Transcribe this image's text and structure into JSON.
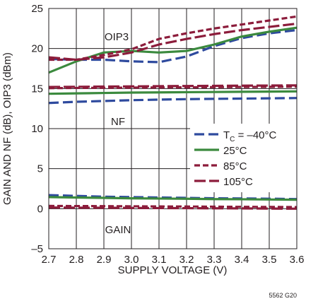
{
  "chart_data": {
    "type": "line",
    "xlabel": "SUPPLY VOLTAGE (V)",
    "ylabel": "GAIN AND NF (dB), OIP3 (dBm)",
    "xlim": [
      2.7,
      3.6
    ],
    "ylim": [
      -5,
      25
    ],
    "x_ticks": [
      "2.7",
      "2.8",
      "2.9",
      "3.0",
      "3.1",
      "3.2",
      "3.3",
      "3.4",
      "3.5",
      "3.6"
    ],
    "y_ticks": [
      "–5",
      "0",
      "5",
      "10",
      "15",
      "20",
      "25"
    ],
    "grid": true,
    "annotations": [
      "OIP3",
      "NF",
      "GAIN"
    ],
    "figure_code": "5562 G20",
    "legend": {
      "placement": "right",
      "entries": [
        {
          "label": "T",
          "subscript": "C",
          "suffix": " = –40°C",
          "color": "#2e4a9e",
          "dash": "dashed"
        },
        {
          "label": "25°C",
          "color": "#3b8a3e",
          "dash": "solid"
        },
        {
          "label": "85°C",
          "color": "#8c1c3b",
          "dash": "short-dash"
        },
        {
          "label": "105°C",
          "color": "#8c1c3b",
          "dash": "long-dash"
        }
      ]
    },
    "x": [
      2.7,
      2.8,
      2.9,
      3.0,
      3.1,
      3.2,
      3.3,
      3.4,
      3.5,
      3.6
    ],
    "series": [
      {
        "name": "OIP3 T_C = –40°C",
        "color": "#2e4a9e",
        "dash": "dashed",
        "values": [
          18.7,
          18.6,
          18.6,
          18.4,
          18.3,
          19.0,
          20.3,
          21.3,
          21.9,
          22.3
        ]
      },
      {
        "name": "OIP3 25°C",
        "color": "#3b8a3e",
        "dash": "solid",
        "values": [
          17.0,
          18.4,
          19.5,
          19.7,
          19.5,
          19.7,
          20.5,
          21.5,
          22.1,
          22.6
        ]
      },
      {
        "name": "OIP3 85°C",
        "color": "#8c1c3b",
        "dash": "short-dash",
        "values": [
          18.6,
          18.6,
          19.2,
          19.9,
          21.2,
          21.9,
          22.5,
          23.0,
          23.5,
          24.0
        ]
      },
      {
        "name": "OIP3 105°C",
        "color": "#8c1c3b",
        "dash": "long-dash",
        "values": [
          18.9,
          18.6,
          18.9,
          19.5,
          20.5,
          21.2,
          21.8,
          22.3,
          22.7,
          23.1
        ]
      },
      {
        "name": "NF T_C = –40°C",
        "color": "#2e4a9e",
        "dash": "dashed",
        "values": [
          13.2,
          13.35,
          13.45,
          13.55,
          13.62,
          13.68,
          13.72,
          13.75,
          13.78,
          13.82
        ]
      },
      {
        "name": "NF 25°C",
        "color": "#3b8a3e",
        "dash": "solid",
        "values": [
          14.35,
          14.4,
          14.45,
          14.5,
          14.52,
          14.55,
          14.57,
          14.6,
          14.62,
          14.65
        ]
      },
      {
        "name": "NF 85°C",
        "color": "#8c1c3b",
        "dash": "short-dash",
        "values": [
          15.05,
          15.08,
          15.1,
          15.12,
          15.14,
          15.16,
          15.18,
          15.2,
          15.22,
          15.25
        ]
      },
      {
        "name": "NF 105°C",
        "color": "#8c1c3b",
        "dash": "long-dash",
        "values": [
          15.2,
          15.22,
          15.25,
          15.27,
          15.3,
          15.32,
          15.34,
          15.36,
          15.38,
          15.4
        ]
      },
      {
        "name": "GAIN T_C = –40°C",
        "color": "#2e4a9e",
        "dash": "dashed",
        "values": [
          1.7,
          1.6,
          1.5,
          1.45,
          1.4,
          1.35,
          1.3,
          1.28,
          1.25,
          1.2
        ]
      },
      {
        "name": "GAIN 25°C",
        "color": "#3b8a3e",
        "dash": "solid",
        "values": [
          1.45,
          1.4,
          1.35,
          1.3,
          1.27,
          1.24,
          1.2,
          1.18,
          1.15,
          1.12
        ]
      },
      {
        "name": "GAIN 85°C",
        "color": "#8c1c3b",
        "dash": "short-dash",
        "values": [
          0.35,
          0.33,
          0.32,
          0.3,
          0.28,
          0.27,
          0.25,
          0.23,
          0.22,
          0.2
        ]
      },
      {
        "name": "GAIN 105°C",
        "color": "#8c1c3b",
        "dash": "long-dash",
        "values": [
          0.15,
          0.13,
          0.12,
          0.1,
          0.08,
          0.07,
          0.05,
          0.04,
          0.02,
          0.0
        ]
      }
    ]
  }
}
